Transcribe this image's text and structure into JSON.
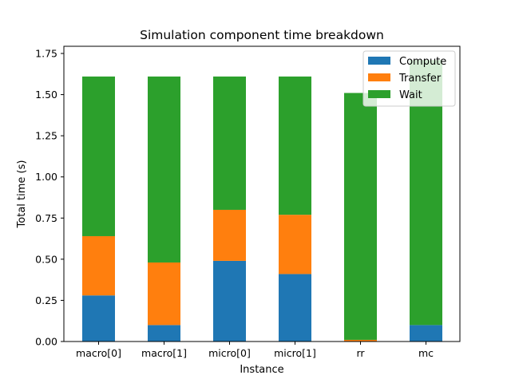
{
  "chart_data": {
    "type": "bar",
    "stacked": true,
    "title": "Simulation component time breakdown",
    "xlabel": "Instance",
    "ylabel": "Total time (s)",
    "categories": [
      "macro[0]",
      "macro[1]",
      "micro[0]",
      "micro[1]",
      "rr",
      "mc"
    ],
    "series": [
      {
        "name": "Compute",
        "color": "#1f77b4",
        "values": [
          0.28,
          0.1,
          0.49,
          0.41,
          0.0,
          0.1
        ]
      },
      {
        "name": "Transfer",
        "color": "#ff7f0e",
        "values": [
          0.36,
          0.38,
          0.31,
          0.36,
          0.01,
          0.0
        ]
      },
      {
        "name": "Wait",
        "color": "#2ca02c",
        "values": [
          0.97,
          1.13,
          0.81,
          0.84,
          1.5,
          1.61
        ]
      }
    ],
    "ylim": [
      0,
      1.8
    ],
    "yticks": [
      "0.00",
      "0.25",
      "0.50",
      "0.75",
      "1.00",
      "1.25",
      "1.50",
      "1.75"
    ],
    "ytick_values": [
      0,
      0.25,
      0.5,
      0.75,
      1.0,
      1.25,
      1.5,
      1.75
    ],
    "legend_position": "top-right",
    "grid": false
  }
}
